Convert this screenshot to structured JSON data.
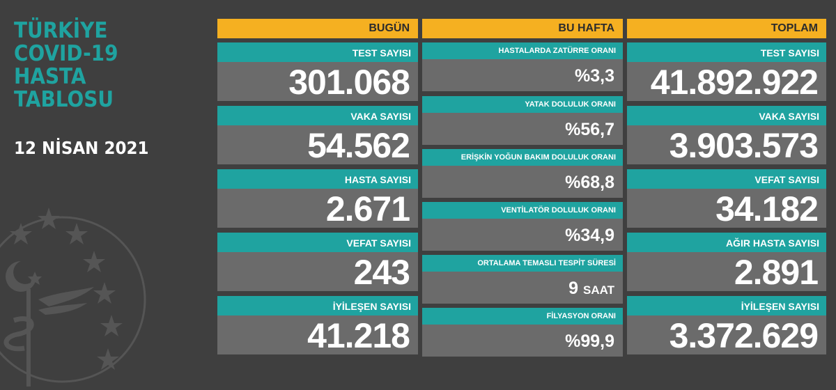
{
  "title": [
    "TÜRKİYE",
    "COVID-19",
    "HASTA",
    "TABLOSU"
  ],
  "date": "12 NİSAN 2021",
  "colors": {
    "teal": "#1fa3a0",
    "orange": "#f5b021",
    "box": "#6b6b6b",
    "bg": "#3f3f3f"
  },
  "today": {
    "header": "BUGÜN",
    "items": [
      {
        "label": "TEST SAYISI",
        "value": "301.068"
      },
      {
        "label": "VAKA SAYISI",
        "value": "54.562"
      },
      {
        "label": "HASTA SAYISI",
        "value": "2.671"
      },
      {
        "label": "VEFAT SAYISI",
        "value": "243"
      },
      {
        "label": "İYİLEŞEN SAYISI",
        "value": "41.218"
      }
    ]
  },
  "week": {
    "header": "BU HAFTA",
    "items": [
      {
        "label": "HASTALARDA ZATÜRRE ORANI",
        "value": "%3,3"
      },
      {
        "label": "YATAK DOLULUK ORANI",
        "value": "%56,7"
      },
      {
        "label": "ERİŞKİN YOĞUN BAKIM DOLULUK ORANI",
        "value": "%68,8"
      },
      {
        "label": "VENTİLATÖR DOLULUK ORANI",
        "value": "%34,9"
      },
      {
        "label": "ORTALAMA TEMASLI TESPİT SÜRESİ",
        "value": "9",
        "unit": "SAAT"
      },
      {
        "label": "FİLYASYON ORANI",
        "value": "%99,9"
      }
    ]
  },
  "total": {
    "header": "TOPLAM",
    "items": [
      {
        "label": "TEST SAYISI",
        "value": "41.892.922"
      },
      {
        "label": "VAKA SAYISI",
        "value": "3.903.573"
      },
      {
        "label": "VEFAT SAYISI",
        "value": "34.182"
      },
      {
        "label": "AĞIR HASTA SAYISI",
        "value": "2.891"
      },
      {
        "label": "İYİLEŞEN SAYISI",
        "value": "3.372.629"
      }
    ]
  }
}
